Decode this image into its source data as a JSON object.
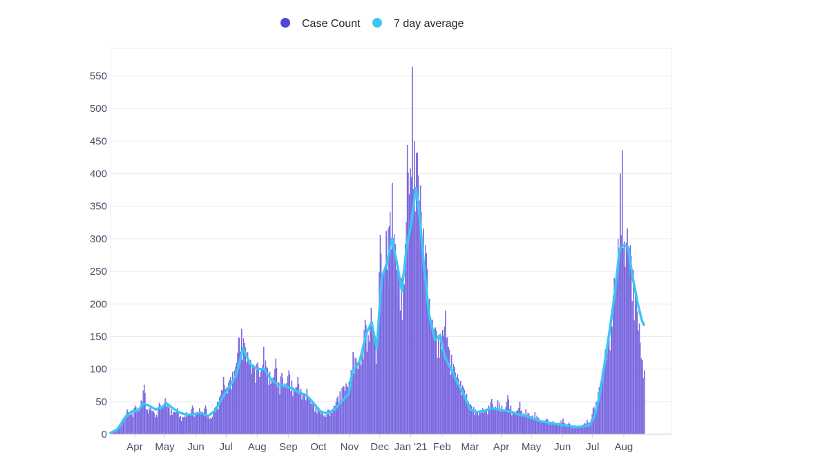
{
  "colors": {
    "bars": "#7a69e0",
    "bars_legend": "#5045d8",
    "average": "#3cc6f3",
    "grid": "#ececf2",
    "axis": "#d0d0d8",
    "tick_text": "#4a4e69"
  },
  "legend": {
    "items": [
      {
        "name": "Case Count",
        "icon": "dot-icon",
        "color": "#5045d8"
      },
      {
        "name": "7 day average",
        "icon": "dot-icon",
        "color": "#3cc6f3"
      }
    ],
    "placement": "top-center"
  },
  "chart_data": {
    "type": "bar",
    "title": "",
    "xlabel": "",
    "ylabel": "",
    "ylim": [
      0,
      580
    ],
    "yticks": [
      0,
      50,
      100,
      150,
      200,
      250,
      300,
      350,
      400,
      450,
      500,
      550
    ],
    "x_range": [
      "2020-03-08",
      "2021-08-21"
    ],
    "xtick_labels": [
      {
        "label": "Apr",
        "date": "2020-04-01"
      },
      {
        "label": "May",
        "date": "2020-05-01"
      },
      {
        "label": "Jun",
        "date": "2020-06-01"
      },
      {
        "label": "Jul",
        "date": "2020-07-01"
      },
      {
        "label": "Aug",
        "date": "2020-08-01"
      },
      {
        "label": "Sep",
        "date": "2020-09-01"
      },
      {
        "label": "Oct",
        "date": "2020-10-01"
      },
      {
        "label": "Nov",
        "date": "2020-11-01"
      },
      {
        "label": "Dec",
        "date": "2020-12-01"
      },
      {
        "label": "Jan '21",
        "date": "2021-01-01"
      },
      {
        "label": "Feb",
        "date": "2021-02-01"
      },
      {
        "label": "Mar",
        "date": "2021-03-01"
      },
      {
        "label": "Apr",
        "date": "2021-04-01"
      },
      {
        "label": "May",
        "date": "2021-05-01"
      },
      {
        "label": "Jun",
        "date": "2021-06-01"
      },
      {
        "label": "Jul",
        "date": "2021-07-01"
      },
      {
        "label": "Aug",
        "date": "2021-08-01"
      }
    ],
    "grid": true,
    "series": [
      {
        "name": "Case Count",
        "type": "bar",
        "points": [
          [
            "2020-03-08",
            2
          ],
          [
            "2020-03-12",
            6
          ],
          [
            "2020-03-16",
            12
          ],
          [
            "2020-03-20",
            22
          ],
          [
            "2020-03-24",
            38
          ],
          [
            "2020-03-28",
            30
          ],
          [
            "2020-04-01",
            44
          ],
          [
            "2020-04-04",
            40
          ],
          [
            "2020-04-07",
            52
          ],
          [
            "2020-04-10",
            76
          ],
          [
            "2020-04-13",
            38
          ],
          [
            "2020-04-16",
            42
          ],
          [
            "2020-04-19",
            36
          ],
          [
            "2020-04-22",
            30
          ],
          [
            "2020-04-25",
            48
          ],
          [
            "2020-04-28",
            44
          ],
          [
            "2020-05-01",
            55
          ],
          [
            "2020-05-04",
            42
          ],
          [
            "2020-05-07",
            38
          ],
          [
            "2020-05-10",
            34
          ],
          [
            "2020-05-13",
            40
          ],
          [
            "2020-05-16",
            28
          ],
          [
            "2020-05-19",
            26
          ],
          [
            "2020-05-22",
            34
          ],
          [
            "2020-05-25",
            30
          ],
          [
            "2020-05-28",
            44
          ],
          [
            "2020-06-01",
            30
          ],
          [
            "2020-06-04",
            40
          ],
          [
            "2020-06-07",
            32
          ],
          [
            "2020-06-10",
            44
          ],
          [
            "2020-06-13",
            30
          ],
          [
            "2020-06-16",
            24
          ],
          [
            "2020-06-19",
            40
          ],
          [
            "2020-06-22",
            50
          ],
          [
            "2020-06-25",
            60
          ],
          [
            "2020-06-28",
            88
          ],
          [
            "2020-07-01",
            72
          ],
          [
            "2020-07-04",
            84
          ],
          [
            "2020-07-07",
            96
          ],
          [
            "2020-07-10",
            104
          ],
          [
            "2020-07-13",
            148
          ],
          [
            "2020-07-16",
            162
          ],
          [
            "2020-07-19",
            140
          ],
          [
            "2020-07-22",
            126
          ],
          [
            "2020-07-25",
            114
          ],
          [
            "2020-07-28",
            104
          ],
          [
            "2020-08-01",
            110
          ],
          [
            "2020-08-04",
            96
          ],
          [
            "2020-08-07",
            134
          ],
          [
            "2020-08-10",
            104
          ],
          [
            "2020-08-13",
            96
          ],
          [
            "2020-08-16",
            86
          ],
          [
            "2020-08-19",
            116
          ],
          [
            "2020-08-22",
            80
          ],
          [
            "2020-08-25",
            94
          ],
          [
            "2020-08-28",
            78
          ],
          [
            "2020-09-01",
            98
          ],
          [
            "2020-09-04",
            82
          ],
          [
            "2020-09-07",
            68
          ],
          [
            "2020-09-10",
            88
          ],
          [
            "2020-09-13",
            70
          ],
          [
            "2020-09-16",
            60
          ],
          [
            "2020-09-19",
            70
          ],
          [
            "2020-09-22",
            54
          ],
          [
            "2020-09-25",
            48
          ],
          [
            "2020-09-28",
            44
          ],
          [
            "2020-10-01",
            40
          ],
          [
            "2020-10-04",
            34
          ],
          [
            "2020-10-07",
            30
          ],
          [
            "2020-10-10",
            38
          ],
          [
            "2020-10-13",
            36
          ],
          [
            "2020-10-16",
            44
          ],
          [
            "2020-10-19",
            56
          ],
          [
            "2020-10-22",
            66
          ],
          [
            "2020-10-25",
            74
          ],
          [
            "2020-10-28",
            78
          ],
          [
            "2020-11-01",
            86
          ],
          [
            "2020-11-04",
            126
          ],
          [
            "2020-11-07",
            116
          ],
          [
            "2020-11-10",
            110
          ],
          [
            "2020-11-13",
            130
          ],
          [
            "2020-11-16",
            176
          ],
          [
            "2020-11-19",
            152
          ],
          [
            "2020-11-22",
            194
          ],
          [
            "2020-11-25",
            146
          ],
          [
            "2020-11-28",
            140
          ],
          [
            "2020-12-01",
            306
          ],
          [
            "2020-12-04",
            250
          ],
          [
            "2020-12-07",
            312
          ],
          [
            "2020-12-10",
            320
          ],
          [
            "2020-12-13",
            386
          ],
          [
            "2020-12-16",
            292
          ],
          [
            "2020-12-19",
            258
          ],
          [
            "2020-12-22",
            240
          ],
          [
            "2020-12-25",
            230
          ],
          [
            "2020-12-28",
            444
          ],
          [
            "2020-12-31",
            408
          ],
          [
            "2021-01-02",
            564
          ],
          [
            "2021-01-04",
            450
          ],
          [
            "2021-01-07",
            432
          ],
          [
            "2021-01-10",
            382
          ],
          [
            "2021-01-13",
            316
          ],
          [
            "2021-01-16",
            278
          ],
          [
            "2021-01-19",
            208
          ],
          [
            "2021-01-22",
            176
          ],
          [
            "2021-01-25",
            164
          ],
          [
            "2021-01-28",
            152
          ],
          [
            "2021-02-01",
            160
          ],
          [
            "2021-02-04",
            190
          ],
          [
            "2021-02-07",
            134
          ],
          [
            "2021-02-10",
            122
          ],
          [
            "2021-02-13",
            104
          ],
          [
            "2021-02-16",
            92
          ],
          [
            "2021-02-19",
            82
          ],
          [
            "2021-02-22",
            72
          ],
          [
            "2021-02-25",
            62
          ],
          [
            "2021-03-01",
            46
          ],
          [
            "2021-03-04",
            42
          ],
          [
            "2021-03-07",
            36
          ],
          [
            "2021-03-10",
            34
          ],
          [
            "2021-03-13",
            40
          ],
          [
            "2021-03-16",
            36
          ],
          [
            "2021-03-19",
            44
          ],
          [
            "2021-03-22",
            54
          ],
          [
            "2021-03-25",
            40
          ],
          [
            "2021-03-28",
            52
          ],
          [
            "2021-04-01",
            44
          ],
          [
            "2021-04-04",
            38
          ],
          [
            "2021-04-07",
            60
          ],
          [
            "2021-04-10",
            44
          ],
          [
            "2021-04-13",
            32
          ],
          [
            "2021-04-16",
            36
          ],
          [
            "2021-04-19",
            50
          ],
          [
            "2021-04-22",
            30
          ],
          [
            "2021-04-25",
            38
          ],
          [
            "2021-04-28",
            32
          ],
          [
            "2021-05-01",
            28
          ],
          [
            "2021-05-04",
            34
          ],
          [
            "2021-05-07",
            26
          ],
          [
            "2021-05-10",
            22
          ],
          [
            "2021-05-13",
            20
          ],
          [
            "2021-05-16",
            24
          ],
          [
            "2021-05-19",
            18
          ],
          [
            "2021-05-22",
            20
          ],
          [
            "2021-05-25",
            16
          ],
          [
            "2021-05-28",
            18
          ],
          [
            "2021-06-01",
            24
          ],
          [
            "2021-06-04",
            14
          ],
          [
            "2021-06-07",
            18
          ],
          [
            "2021-06-10",
            12
          ],
          [
            "2021-06-13",
            14
          ],
          [
            "2021-06-16",
            10
          ],
          [
            "2021-06-19",
            12
          ],
          [
            "2021-06-22",
            16
          ],
          [
            "2021-06-25",
            22
          ],
          [
            "2021-06-28",
            18
          ],
          [
            "2021-07-01",
            40
          ],
          [
            "2021-07-04",
            50
          ],
          [
            "2021-07-07",
            72
          ],
          [
            "2021-07-10",
            96
          ],
          [
            "2021-07-13",
            130
          ],
          [
            "2021-07-16",
            150
          ],
          [
            "2021-07-19",
            182
          ],
          [
            "2021-07-22",
            240
          ],
          [
            "2021-07-25",
            262
          ],
          [
            "2021-07-28",
            400
          ],
          [
            "2021-07-30",
            436
          ],
          [
            "2021-08-01",
            296
          ],
          [
            "2021-08-04",
            316
          ],
          [
            "2021-08-07",
            290
          ],
          [
            "2021-08-10",
            252
          ],
          [
            "2021-08-13",
            206
          ],
          [
            "2021-08-16",
            170
          ],
          [
            "2021-08-19",
            114
          ],
          [
            "2021-08-21",
            98
          ]
        ]
      },
      {
        "name": "7 day average",
        "type": "line",
        "points": [
          [
            "2020-03-08",
            2
          ],
          [
            "2020-03-15",
            8
          ],
          [
            "2020-03-22",
            25
          ],
          [
            "2020-03-29",
            35
          ],
          [
            "2020-04-05",
            36
          ],
          [
            "2020-04-09",
            47
          ],
          [
            "2020-04-15",
            44
          ],
          [
            "2020-04-22",
            38
          ],
          [
            "2020-04-29",
            42
          ],
          [
            "2020-05-02",
            48
          ],
          [
            "2020-05-09",
            40
          ],
          [
            "2020-05-16",
            33
          ],
          [
            "2020-05-23",
            30
          ],
          [
            "2020-05-30",
            31
          ],
          [
            "2020-06-06",
            33
          ],
          [
            "2020-06-13",
            28
          ],
          [
            "2020-06-20",
            36
          ],
          [
            "2020-06-27",
            55
          ],
          [
            "2020-07-04",
            72
          ],
          [
            "2020-07-11",
            90
          ],
          [
            "2020-07-18",
            132
          ],
          [
            "2020-07-25",
            108
          ],
          [
            "2020-08-01",
            100
          ],
          [
            "2020-08-08",
            100
          ],
          [
            "2020-08-15",
            84
          ],
          [
            "2020-08-22",
            76
          ],
          [
            "2020-08-29",
            74
          ],
          [
            "2020-09-05",
            70
          ],
          [
            "2020-09-12",
            64
          ],
          [
            "2020-09-19",
            60
          ],
          [
            "2020-09-26",
            48
          ],
          [
            "2020-10-03",
            35
          ],
          [
            "2020-10-10",
            32
          ],
          [
            "2020-10-17",
            38
          ],
          [
            "2020-10-24",
            50
          ],
          [
            "2020-10-31",
            62
          ],
          [
            "2020-11-04",
            96
          ],
          [
            "2020-11-11",
            112
          ],
          [
            "2020-11-18",
            156
          ],
          [
            "2020-11-23",
            172
          ],
          [
            "2020-11-28",
            132
          ],
          [
            "2020-12-03",
            240
          ],
          [
            "2020-12-08",
            262
          ],
          [
            "2020-12-13",
            300
          ],
          [
            "2020-12-18",
            264
          ],
          [
            "2020-12-23",
            220
          ],
          [
            "2020-12-28",
            290
          ],
          [
            "2021-01-01",
            320
          ],
          [
            "2021-01-06",
            378
          ],
          [
            "2021-01-10",
            330
          ],
          [
            "2021-01-14",
            260
          ],
          [
            "2021-01-19",
            185
          ],
          [
            "2021-01-25",
            145
          ],
          [
            "2021-01-30",
            152
          ],
          [
            "2021-02-04",
            118
          ],
          [
            "2021-02-10",
            100
          ],
          [
            "2021-02-16",
            80
          ],
          [
            "2021-02-22",
            64
          ],
          [
            "2021-03-01",
            38
          ],
          [
            "2021-03-08",
            34
          ],
          [
            "2021-03-15",
            36
          ],
          [
            "2021-03-22",
            40
          ],
          [
            "2021-03-29",
            38
          ],
          [
            "2021-04-05",
            36
          ],
          [
            "2021-04-12",
            34
          ],
          [
            "2021-04-19",
            30
          ],
          [
            "2021-04-26",
            28
          ],
          [
            "2021-05-03",
            24
          ],
          [
            "2021-05-10",
            20
          ],
          [
            "2021-05-17",
            18
          ],
          [
            "2021-05-24",
            16
          ],
          [
            "2021-05-31",
            14
          ],
          [
            "2021-06-07",
            13
          ],
          [
            "2021-06-14",
            11
          ],
          [
            "2021-06-21",
            12
          ],
          [
            "2021-06-28",
            14
          ],
          [
            "2021-07-03",
            28
          ],
          [
            "2021-07-08",
            60
          ],
          [
            "2021-07-13",
            110
          ],
          [
            "2021-07-18",
            160
          ],
          [
            "2021-07-23",
            215
          ],
          [
            "2021-07-28",
            285
          ],
          [
            "2021-08-01",
            290
          ],
          [
            "2021-08-05",
            288
          ],
          [
            "2021-08-10",
            240
          ],
          [
            "2021-08-15",
            200
          ],
          [
            "2021-08-19",
            175
          ],
          [
            "2021-08-21",
            168
          ]
        ]
      }
    ]
  }
}
